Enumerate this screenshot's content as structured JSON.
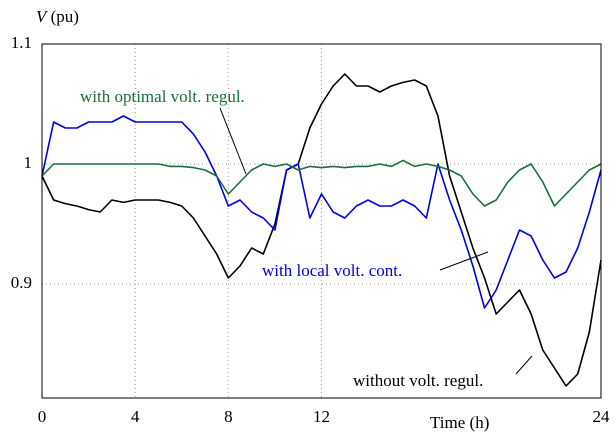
{
  "chart_data": {
    "type": "line",
    "ylabel_symbol": "V",
    "ylabel_unit": "(pu)",
    "xlabel": "Time (h)",
    "annotations": [
      "with optimal volt. regul.",
      "with local volt. cont.",
      "without volt. regul."
    ],
    "x": [
      0,
      0.5,
      1,
      1.5,
      2,
      2.5,
      3,
      3.5,
      4,
      4.5,
      5,
      5.5,
      6,
      6.5,
      7,
      7.5,
      8,
      8.5,
      9,
      9.5,
      10,
      10.5,
      11,
      11.5,
      12,
      12.5,
      13,
      13.5,
      14,
      14.5,
      15,
      15.5,
      16,
      16.5,
      17,
      17.5,
      18,
      18.5,
      19,
      19.5,
      20,
      20.5,
      21,
      21.5,
      22,
      22.5,
      23,
      23.5,
      24
    ],
    "series": [
      {
        "name": "without volt. regul.",
        "color": "#000000",
        "values": [
          0.99,
          0.97,
          0.967,
          0.965,
          0.962,
          0.96,
          0.97,
          0.968,
          0.97,
          0.97,
          0.97,
          0.968,
          0.965,
          0.955,
          0.94,
          0.925,
          0.905,
          0.915,
          0.93,
          0.925,
          0.95,
          0.995,
          1.0,
          1.03,
          1.05,
          1.065,
          1.075,
          1.065,
          1.065,
          1.06,
          1.065,
          1.068,
          1.07,
          1.065,
          1.04,
          0.99,
          0.96,
          0.93,
          0.905,
          0.875,
          0.885,
          0.895,
          0.875,
          0.845,
          0.83,
          0.815,
          0.825,
          0.86,
          0.92
        ]
      },
      {
        "name": "with local volt. cont.",
        "color": "#0000e0",
        "values": [
          0.99,
          1.035,
          1.03,
          1.03,
          1.035,
          1.035,
          1.035,
          1.04,
          1.035,
          1.035,
          1.035,
          1.035,
          1.035,
          1.025,
          1.01,
          0.99,
          0.965,
          0.97,
          0.96,
          0.955,
          0.945,
          0.995,
          1.0,
          0.955,
          0.975,
          0.96,
          0.955,
          0.965,
          0.97,
          0.965,
          0.965,
          0.97,
          0.965,
          0.955,
          1.0,
          0.97,
          0.945,
          0.915,
          0.88,
          0.895,
          0.92,
          0.945,
          0.94,
          0.92,
          0.905,
          0.91,
          0.93,
          0.96,
          0.995
        ]
      },
      {
        "name": "with optimal volt. regul.",
        "color": "#1a6e3a",
        "values": [
          0.99,
          1.0,
          1.0,
          1.0,
          1.0,
          1.0,
          1.0,
          1.0,
          1.0,
          1.0,
          1.0,
          0.998,
          0.998,
          0.997,
          0.995,
          0.99,
          0.975,
          0.985,
          0.995,
          1.0,
          0.998,
          1.0,
          0.995,
          0.998,
          0.997,
          0.998,
          0.997,
          0.998,
          0.998,
          1.0,
          0.998,
          1.003,
          0.998,
          1.0,
          0.998,
          0.995,
          0.99,
          0.975,
          0.965,
          0.97,
          0.985,
          0.995,
          1.0,
          0.985,
          0.965,
          0.975,
          0.985,
          0.995,
          1.0
        ]
      }
    ],
    "xlim": [
      0,
      24
    ],
    "xticks": [
      0,
      4,
      8,
      12,
      24
    ],
    "ylim": [
      0.805,
      1.1
    ],
    "yticks": [
      0.9,
      1,
      1.1
    ],
    "grid": true
  }
}
